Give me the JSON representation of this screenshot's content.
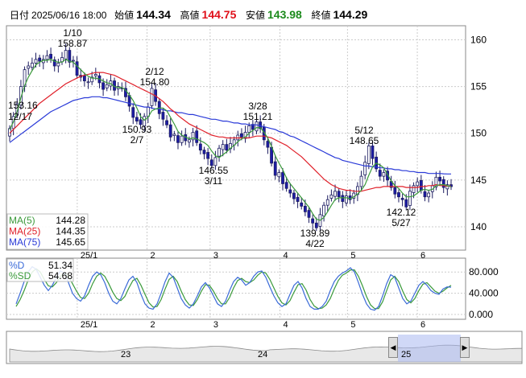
{
  "header": {
    "label_date": "日付",
    "datetime": "2025/06/16 18:00",
    "label_open": "始値",
    "open": "144.34",
    "label_high": "高値",
    "high": "144.75",
    "label_low": "安値",
    "low": "143.98",
    "label_close": "終値",
    "close": "144.29"
  },
  "colors": {
    "up": "#ffffff",
    "down": "#1c1ca8",
    "ma5": "#3a9a3a",
    "ma25": "#e0202a",
    "ma75": "#2a3ad8",
    "pctD": "#3a6ad8",
    "pctSD": "#3a9a3a",
    "nav_fill": "#aab8f0"
  },
  "legend": [
    {
      "name": "MA(5)",
      "value": "144.28"
    },
    {
      "name": "MA(25)",
      "value": "144.35"
    },
    {
      "name": "MA(75)",
      "value": "145.65"
    }
  ],
  "osc_legend": [
    {
      "name": "%D",
      "value": "51.34"
    },
    {
      "name": "%SD",
      "value": "54.68"
    }
  ],
  "chart_data": [
    {
      "type": "candlestick",
      "ylim": [
        137.5,
        161.5
      ],
      "yticks": [
        "160",
        "155",
        "150",
        "145",
        "140"
      ],
      "xticks": [
        "25/1",
        "2",
        "3",
        "4",
        "5",
        "6"
      ],
      "x_start": "2024-12-02",
      "x_end": "2025-06-16",
      "annotations": [
        {
          "value": "153.16",
          "date": "12/17"
        },
        {
          "value": "158.87",
          "date": "1/10"
        },
        {
          "value": "150.93",
          "date": "2/7"
        },
        {
          "value": "154.80",
          "date": "2/12"
        },
        {
          "value": "146.55",
          "date": "3/11"
        },
        {
          "value": "151.21",
          "date": "3/28"
        },
        {
          "value": "139.89",
          "date": "4/22"
        },
        {
          "value": "148.65",
          "date": "5/12"
        },
        {
          "value": "142.12",
          "date": "5/27"
        }
      ],
      "closes": [
        150.5,
        151.8,
        153.16,
        155.0,
        156.8,
        157.2,
        157.5,
        157.9,
        157.7,
        157.9,
        158.3,
        158.0,
        157.2,
        157.5,
        158.1,
        158.87,
        157.6,
        157.8,
        156.2,
        156.0,
        155.6,
        155.5,
        156.0,
        156.3,
        155.4,
        154.7,
        155.2,
        155.6,
        154.6,
        155.0,
        154.8,
        153.9,
        152.9,
        151.7,
        151.3,
        150.93,
        151.8,
        152.8,
        154.8,
        153.4,
        152.1,
        151.5,
        150.9,
        149.6,
        149.9,
        149.0,
        149.7,
        149.2,
        149.3,
        150.1,
        149.0,
        148.2,
        147.8,
        147.3,
        146.55,
        147.4,
        148.4,
        148.8,
        148.2,
        148.9,
        149.3,
        149.8,
        149.6,
        150.1,
        150.8,
        150.4,
        151.21,
        150.5,
        149.3,
        148.5,
        146.8,
        145.5,
        145.8,
        144.6,
        144.1,
        143.6,
        143.0,
        142.7,
        142.2,
        141.6,
        141.0,
        140.4,
        139.89,
        141.3,
        142.3,
        142.9,
        143.4,
        143.8,
        143.2,
        142.7,
        143.3,
        142.9,
        143.6,
        144.3,
        145.4,
        146.9,
        148.65,
        147.3,
        146.2,
        145.4,
        145.8,
        145.0,
        144.2,
        143.5,
        143.2,
        142.9,
        142.12,
        143.8,
        144.4,
        144.8,
        143.9,
        143.2,
        143.6,
        144.4,
        145.3,
        144.9,
        144.2,
        144.5,
        144.29
      ],
      "ma5": [
        150.4,
        151.2,
        152.3,
        153.8,
        155.1,
        156.0,
        156.7,
        157.3,
        157.6,
        157.8,
        157.8,
        157.9,
        157.7,
        157.6,
        157.6,
        157.9,
        157.7,
        157.6,
        157.2,
        156.8,
        156.4,
        156.1,
        155.9,
        155.9,
        155.8,
        155.6,
        155.4,
        155.3,
        155.0,
        154.9,
        154.9,
        154.6,
        154.1,
        153.5,
        152.7,
        151.8,
        151.4,
        151.7,
        152.4,
        152.6,
        152.7,
        152.7,
        152.4,
        151.7,
        151.0,
        150.2,
        149.8,
        149.6,
        149.4,
        149.5,
        149.4,
        149.2,
        149.0,
        148.7,
        148.1,
        147.6,
        147.4,
        147.7,
        148.0,
        148.4,
        148.7,
        149.1,
        149.4,
        149.6,
        150.0,
        150.3,
        150.6,
        150.6,
        150.1,
        149.5,
        148.6,
        147.6,
        146.8,
        146.1,
        145.2,
        144.6,
        144.1,
        143.6,
        143.1,
        142.6,
        142.1,
        141.4,
        140.8,
        140.7,
        141.0,
        141.6,
        142.3,
        142.9,
        143.1,
        143.1,
        143.1,
        143.0,
        143.2,
        143.5,
        143.9,
        144.5,
        145.5,
        146.4,
        146.8,
        146.6,
        146.3,
        145.6,
        144.9,
        144.4,
        144.1,
        143.6,
        143.2,
        143.2,
        143.3,
        143.6,
        143.9,
        144.0,
        143.9,
        144.0,
        144.4,
        144.5,
        144.5,
        144.4,
        144.28
      ],
      "ma25": [
        150.0,
        150.4,
        150.8,
        151.2,
        151.6,
        152.0,
        152.4,
        152.8,
        153.2,
        153.5,
        153.8,
        154.1,
        154.4,
        154.7,
        155.0,
        155.3,
        155.5,
        155.7,
        155.9,
        156.1,
        156.2,
        156.3,
        156.4,
        156.5,
        156.5,
        156.5,
        156.4,
        156.3,
        156.2,
        156.0,
        155.8,
        155.6,
        155.4,
        155.2,
        155.0,
        154.8,
        154.6,
        154.4,
        154.2,
        154.0,
        153.7,
        153.4,
        153.0,
        152.6,
        152.3,
        151.9,
        151.6,
        151.3,
        151.0,
        150.8,
        150.6,
        150.4,
        150.2,
        150.0,
        149.8,
        149.7,
        149.6,
        149.6,
        149.5,
        149.5,
        149.5,
        149.5,
        149.5,
        149.5,
        149.5,
        149.6,
        149.7,
        149.7,
        149.7,
        149.6,
        149.5,
        149.3,
        149.1,
        148.9,
        148.7,
        148.4,
        148.1,
        147.8,
        147.5,
        147.1,
        146.7,
        146.3,
        145.9,
        145.5,
        145.1,
        144.8,
        144.5,
        144.3,
        144.1,
        144.0,
        143.9,
        143.9,
        143.8,
        143.8,
        143.8,
        143.9,
        144.0,
        144.1,
        144.2,
        144.2,
        144.3,
        144.3,
        144.3,
        144.3,
        144.3,
        144.3,
        144.2,
        144.2,
        144.2,
        144.2,
        144.3,
        144.3,
        144.4,
        144.4,
        144.5,
        144.4,
        144.4,
        144.35,
        144.35
      ],
      "ma75": [
        149.0,
        149.3,
        149.6,
        149.9,
        150.2,
        150.5,
        150.8,
        151.1,
        151.4,
        151.7,
        152.0,
        152.3,
        152.5,
        152.7,
        152.9,
        153.1,
        153.3,
        153.5,
        153.6,
        153.7,
        153.8,
        153.8,
        153.9,
        153.9,
        153.9,
        153.8,
        153.8,
        153.7,
        153.6,
        153.5,
        153.4,
        153.3,
        153.2,
        153.1,
        153.0,
        152.9,
        152.8,
        152.8,
        152.7,
        152.6,
        152.6,
        152.5,
        152.4,
        152.4,
        152.3,
        152.2,
        152.2,
        152.1,
        152.0,
        152.0,
        151.9,
        151.8,
        151.7,
        151.6,
        151.5,
        151.5,
        151.4,
        151.3,
        151.3,
        151.2,
        151.1,
        151.1,
        151.0,
        151.0,
        150.9,
        150.9,
        150.9,
        150.8,
        150.7,
        150.6,
        150.5,
        150.4,
        150.2,
        150.1,
        149.9,
        149.7,
        149.6,
        149.4,
        149.2,
        149.0,
        148.8,
        148.6,
        148.4,
        148.2,
        148.0,
        147.8,
        147.6,
        147.4,
        147.3,
        147.1,
        147.0,
        146.9,
        146.8,
        146.7,
        146.6,
        146.5,
        146.5,
        146.4,
        146.4,
        146.3,
        146.3,
        146.2,
        146.2,
        146.1,
        146.1,
        146.0,
        146.0,
        145.9,
        145.9,
        145.8,
        145.8,
        145.8,
        145.7,
        145.7,
        145.7,
        145.7,
        145.66,
        145.65,
        145.65
      ]
    },
    {
      "type": "line",
      "ylim": [
        0,
        100
      ],
      "yticks": [
        "80.000",
        "40.000",
        "0.000"
      ],
      "xticks": [
        "25/1",
        "2",
        "3",
        "4",
        "5",
        "6"
      ],
      "pctD": [
        20,
        40,
        62,
        80,
        90,
        85,
        70,
        55,
        45,
        55,
        70,
        82,
        78,
        60,
        40,
        30,
        25,
        35,
        55,
        72,
        80,
        75,
        60,
        40,
        25,
        20,
        30,
        48,
        65,
        72,
        60,
        38,
        20,
        12,
        10,
        20,
        40,
        62,
        78,
        70,
        50,
        30,
        18,
        12,
        20,
        35,
        52,
        60,
        50,
        35,
        20,
        15,
        25,
        45,
        62,
        70,
        65,
        55,
        60,
        72,
        80,
        82,
        70,
        52,
        35,
        22,
        15,
        20,
        38,
        55,
        62,
        50,
        30,
        15,
        10,
        10,
        15,
        25,
        45,
        62,
        72,
        78,
        82,
        88,
        80,
        60,
        38,
        20,
        10,
        8,
        15,
        35,
        58,
        75,
        70,
        50,
        30,
        20,
        25,
        40,
        55,
        62,
        55,
        45,
        40,
        38,
        48,
        52,
        51.34
      ],
      "pctSD": [
        15,
        28,
        45,
        65,
        80,
        86,
        80,
        66,
        54,
        52,
        60,
        72,
        78,
        72,
        58,
        44,
        32,
        30,
        40,
        58,
        72,
        78,
        72,
        58,
        42,
        30,
        26,
        34,
        50,
        64,
        68,
        55,
        38,
        22,
        14,
        15,
        28,
        48,
        66,
        72,
        62,
        44,
        28,
        18,
        17,
        28,
        44,
        56,
        55,
        44,
        30,
        20,
        20,
        32,
        50,
        64,
        68,
        62,
        60,
        65,
        74,
        80,
        78,
        66,
        50,
        34,
        22,
        18,
        26,
        42,
        56,
        58,
        46,
        28,
        16,
        11,
        12,
        18,
        30,
        48,
        64,
        74,
        78,
        84,
        84,
        72,
        54,
        34,
        18,
        11,
        11,
        24,
        45,
        65,
        72,
        62,
        44,
        28,
        22,
        30,
        45,
        57,
        60,
        52,
        44,
        40,
        44,
        50,
        54.68
      ]
    }
  ],
  "navigator": {
    "labels": [
      "23",
      "24",
      "25"
    ]
  }
}
